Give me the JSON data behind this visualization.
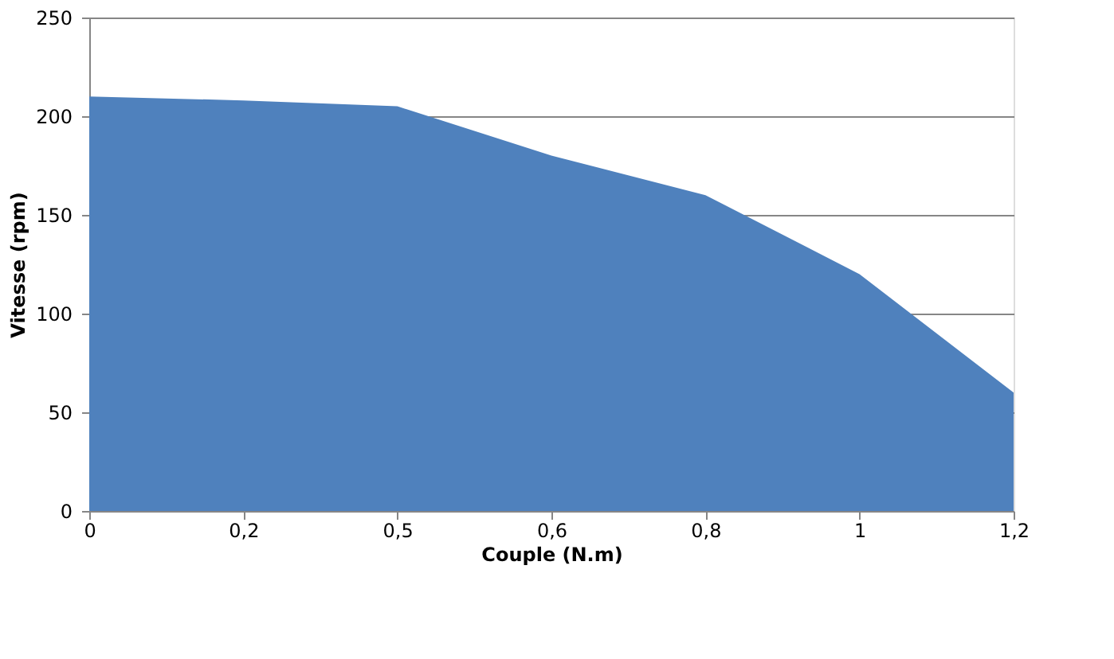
{
  "chart_data": {
    "type": "area",
    "xlabel": "Couple (N.m)",
    "ylabel": "Vitesse (rpm)",
    "categories": [
      "0",
      "0,2",
      "0,5",
      "0,6",
      "0,8",
      "1",
      "1,2"
    ],
    "series": [
      {
        "color": "#4f81bd",
        "values": [
          210,
          208,
          205,
          180,
          160,
          120,
          60
        ]
      }
    ],
    "ylim": [
      0,
      250
    ],
    "yticks": [
      0,
      50,
      100,
      150,
      200,
      250
    ],
    "grid": "y"
  }
}
